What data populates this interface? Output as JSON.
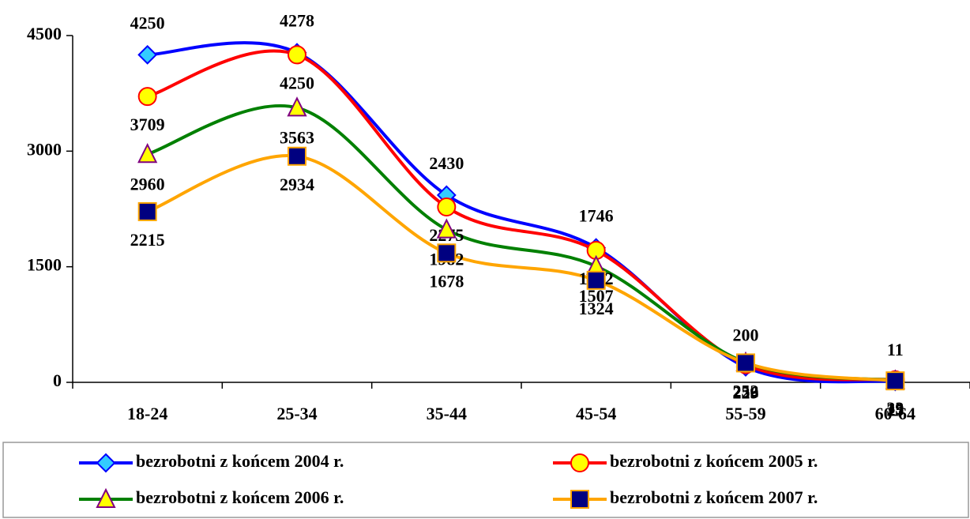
{
  "chart_data": {
    "type": "line",
    "categories": [
      "18-24",
      "25-34",
      "35-44",
      "45-54",
      "55-59",
      "60-64"
    ],
    "series": [
      {
        "name": "bezrobotni z końcem 2004 r.",
        "color": "#0000ff",
        "marker": "diamond",
        "marker_fill": "#33ccff",
        "marker_stroke": "#0000ff",
        "values": [
          4250,
          4278,
          2430,
          1746,
          200,
          11
        ]
      },
      {
        "name": "bezrobotni z końcem 2005 r.",
        "color": "#ff0000",
        "marker": "circle",
        "marker_fill": "#ffff00",
        "marker_stroke": "#ff0000",
        "values": [
          3709,
          4250,
          2275,
          1712,
          229,
          33
        ]
      },
      {
        "name": "bezrobotni z końcem 2006 r.",
        "color": "#008000",
        "marker": "triangle",
        "marker_fill": "#ffff00",
        "marker_stroke": "#800080",
        "values": [
          2960,
          3563,
          1982,
          1507,
          256,
          25
        ]
      },
      {
        "name": "bezrobotni z końcem 2007 r.",
        "color": "#ffa500",
        "marker": "square",
        "marker_fill": "#000080",
        "marker_stroke": "#ffa500",
        "values": [
          2215,
          2934,
          1678,
          1324,
          252,
          19
        ]
      }
    ],
    "ylim": [
      0,
      4500
    ],
    "yticks": [
      0,
      1500,
      3000,
      4500
    ],
    "grid": false,
    "legend": "bottom"
  }
}
